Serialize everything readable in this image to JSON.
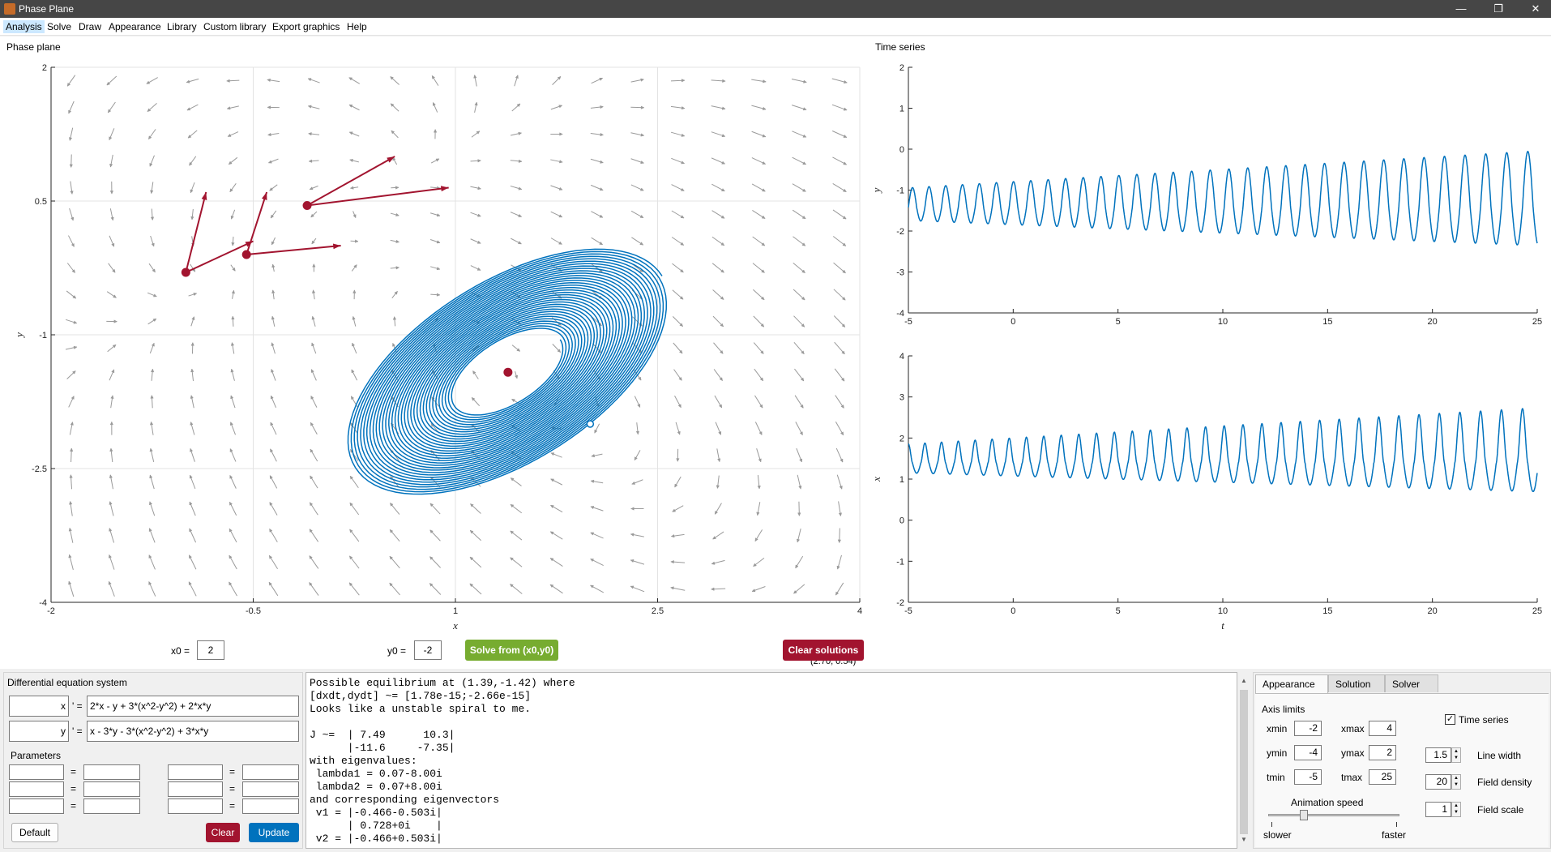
{
  "window": {
    "title": "Phase Plane",
    "minimize": "—",
    "restore": "❐",
    "close": "✕"
  },
  "menu": [
    "Analysis",
    "Solve",
    "Draw",
    "Appearance",
    "Library",
    "Custom library",
    "Export graphics",
    "Help"
  ],
  "phase_plane": {
    "title": "Phase plane",
    "coord_readout": "(2.70, 0.54)",
    "x0_label": "x0 =",
    "x0_value": "2",
    "y0_label": "y0 =",
    "y0_value": "-2",
    "solve_button": "Solve from (x0,y0)",
    "clear_solutions_button": "Clear solutions"
  },
  "time_series": {
    "title": "Time series"
  },
  "chart_data": [
    {
      "type": "vector-field",
      "name": "phase_plane",
      "xlabel": "x",
      "ylabel": "y",
      "xlim": [
        -2,
        4
      ],
      "ylim": [
        -4,
        2
      ],
      "xticks": [
        "-2",
        "-0.5",
        "1",
        "2.5",
        "4"
      ],
      "yticks": [
        "-4",
        "-2.5",
        "-1",
        "0.5",
        "2"
      ],
      "grid": true,
      "field_color": "#9a9a9a",
      "trajectory_color": "#0072bd",
      "equilibria_color": "#a2142f",
      "equilibria": [
        [
          1.39,
          -1.42
        ],
        [
          -1.0,
          -0.3
        ],
        [
          -0.1,
          0.45
        ],
        [
          -0.55,
          -0.1
        ]
      ],
      "eigenvector_arrows": [
        {
          "from": [
            -1.0,
            -0.3
          ],
          "to": [
            -0.85,
            0.6
          ]
        },
        {
          "from": [
            -1.0,
            -0.3
          ],
          "to": [
            -0.5,
            0.05
          ]
        },
        {
          "from": [
            -0.55,
            -0.1
          ],
          "to": [
            -0.4,
            0.6
          ]
        },
        {
          "from": [
            -0.55,
            -0.1
          ],
          "to": [
            0.15,
            0.0
          ]
        },
        {
          "from": [
            -0.1,
            0.45
          ],
          "to": [
            0.55,
            1.0
          ]
        },
        {
          "from": [
            -0.1,
            0.45
          ],
          "to": [
            0.95,
            0.65
          ]
        }
      ],
      "spiral": {
        "center": [
          1.39,
          -1.42
        ],
        "start": [
          2.0,
          -2.0
        ]
      }
    },
    {
      "type": "line",
      "name": "time_series_y",
      "xlabel": "",
      "ylabel": "y",
      "xlim": [
        -5,
        25
      ],
      "ylim": [
        -4,
        2
      ],
      "xticks": [
        "-5",
        "0",
        "5",
        "10",
        "15",
        "20",
        "25"
      ],
      "yticks": [
        "-4",
        "-3",
        "-2",
        "-1",
        "0",
        "1",
        "2"
      ],
      "series_color": "#0072bd"
    },
    {
      "type": "line",
      "name": "time_series_x",
      "xlabel": "t",
      "ylabel": "x",
      "xlim": [
        -5,
        25
      ],
      "ylim": [
        -2,
        4
      ],
      "xticks": [
        "-5",
        "0",
        "5",
        "10",
        "15",
        "20",
        "25"
      ],
      "yticks": [
        "-2",
        "-1",
        "0",
        "1",
        "2",
        "3",
        "4"
      ],
      "series_color": "#0072bd"
    }
  ],
  "de_system": {
    "title": "Differential equation system",
    "var1": "x",
    "var2": "y",
    "prime": "' =",
    "eq1": "2*x - y + 3*(x^2-y^2) + 2*x*y",
    "eq2": "x - 3*y - 3*(x^2-y^2) + 3*x*y",
    "parameters_label": "Parameters",
    "eq_sign": "=",
    "default_button": "Default",
    "clear_button": "Clear",
    "update_button": "Update"
  },
  "output_text": "Possible equilibrium at (1.39,-1.42) where\n[dxdt,dydt] ~= [1.78e-15;-2.66e-15]\nLooks like a unstable spiral to me.\n\nJ ~=  | 7.49      10.3|\n      |-11.6     -7.35|\nwith eigenvalues:\n lambda1 = 0.07-8.00i\n lambda2 = 0.07+8.00i\nand corresponding eigenvectors\n v1 = |-0.466-0.503i|\n      | 0.728+0i    |\n v2 = |-0.466+0.503i|",
  "settings": {
    "tabs": [
      "Appearance",
      "Solution",
      "Solver"
    ],
    "axis_limits_label": "Axis limits",
    "xmin_label": "xmin",
    "xmin": "-2",
    "xmax_label": "xmax",
    "xmax": "4",
    "ymin_label": "ymin",
    "ymin": "-4",
    "ymax_label": "ymax",
    "ymax": "2",
    "tmin_label": "tmin",
    "tmin": "-5",
    "tmax_label": "tmax",
    "tmax": "25",
    "time_series_label": "Time series",
    "time_series_checked": "✓",
    "line_width_label": "Line width",
    "line_width": "1.5",
    "field_density_label": "Field density",
    "field_density": "20",
    "field_scale_label": "Field scale",
    "field_scale": "1",
    "animation_speed_label": "Animation speed",
    "slower_label": "slower",
    "faster_label": "faster",
    "animation_speed_level": 0.25
  }
}
